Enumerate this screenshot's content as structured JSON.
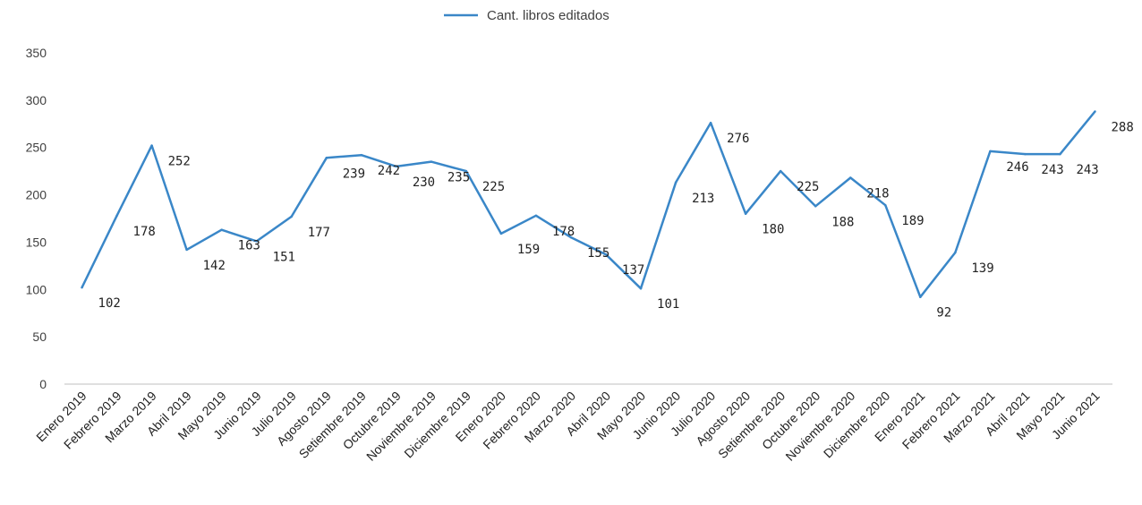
{
  "chart_data": {
    "type": "line",
    "title": "",
    "xlabel": "",
    "ylabel": "",
    "ylim": [
      0,
      350
    ],
    "yticks": [
      0,
      50,
      100,
      150,
      200,
      250,
      300,
      350
    ],
    "grid": false,
    "legend_position": "top-center",
    "categories": [
      "Enero 2019",
      "Febrero 2019",
      "Marzo 2019",
      "Abril 2019",
      "Mayo 2019",
      "Junio 2019",
      "Julio 2019",
      "Agosto 2019",
      "Setiembre 2019",
      "Octubre 2019",
      "Noviembre 2019",
      "Diciembre 2019",
      "Enero 2020",
      "Febrero 2020",
      "Marzo 2020",
      "Abril 2020",
      "Mayo 2020",
      "Junio 2020",
      "Julio 2020",
      "Agosto 2020",
      "Setiembre 2020",
      "Octubre 2020",
      "Noviembre 2020",
      "Diciembre 2020",
      "Enero 2021",
      "Febrero 2021",
      "Marzo 2021",
      "Abril 2021",
      "Mayo 2021",
      "Junio 2021"
    ],
    "series": [
      {
        "name": "Cant. libros editados",
        "color": "#3a87c8",
        "values": [
          102,
          178,
          252,
          142,
          163,
          151,
          177,
          239,
          242,
          230,
          235,
          225,
          159,
          178,
          155,
          137,
          101,
          213,
          276,
          180,
          225,
          188,
          218,
          189,
          92,
          139,
          246,
          243,
          243,
          288
        ]
      }
    ]
  }
}
